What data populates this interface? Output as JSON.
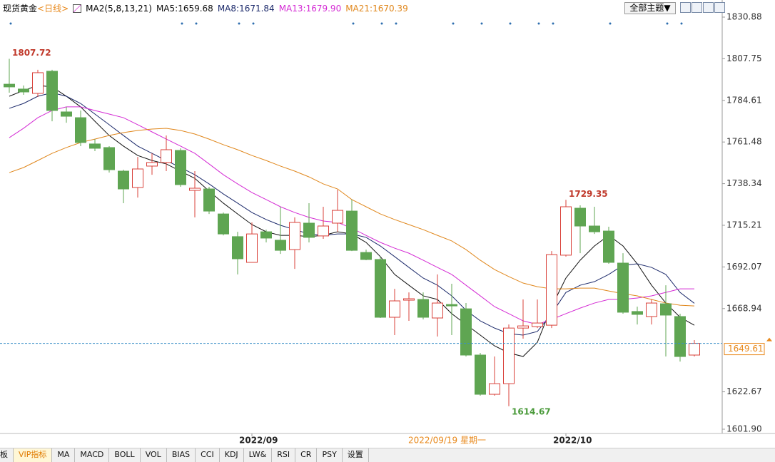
{
  "chart_data": {
    "type": "candlestick",
    "title": "现货黄金",
    "period": "<日线>",
    "indicator": "MA2(5,8,13,21)",
    "crosshair_label": "2022/09/19 星期一",
    "categories": [
      null,
      null,
      null,
      null,
      null,
      null,
      null,
      null,
      null,
      null,
      null,
      null,
      null,
      null,
      null,
      null,
      null,
      "2022/09",
      null,
      null,
      null,
      null,
      null,
      null,
      null,
      null,
      null,
      null,
      null,
      null,
      null,
      null,
      null,
      null,
      null,
      null,
      null,
      null,
      null,
      "2022/10",
      null,
      null,
      null,
      null,
      null,
      null,
      null,
      null,
      null
    ],
    "open": [
      1793.6,
      1790.9,
      1788.5,
      1800.8,
      1778.2,
      1775.0,
      1760.4,
      1758.4,
      1745.3,
      1736.2,
      1748.1,
      1750.1,
      1756.8,
      1734.6,
      1735.4,
      1721.5,
      1708.9,
      1694.6,
      1711.6,
      1706.9,
      1701.7,
      1716.4,
      1709.3,
      1716.4,
      1723.1,
      1700.1,
      1696.2,
      1664.1,
      1673.6,
      1674.0,
      1663.7,
      1671.2,
      1668.8,
      1643.1,
      1621.3,
      1627.2,
      1658.1,
      1658.9,
      1659.7,
      1698.6,
      1724.7,
      1714.8,
      1712.0,
      1694.2,
      1667.3,
      1664.5,
      1671.6,
      1664.5,
      1643.1
    ],
    "high": [
      1807.72,
      1792.9,
      1801.6,
      1801.6,
      1781.0,
      1779.0,
      1763.1,
      1759.2,
      1746.1,
      1753.2,
      1755.2,
      1765.1,
      1758.0,
      1745.3,
      1736.6,
      1722.3,
      1711.6,
      1716.8,
      1712.8,
      1725.5,
      1719.6,
      1727.5,
      1725.5,
      1735.0,
      1729.5,
      1701.7,
      1697.8,
      1679.9,
      1677.9,
      1677.9,
      1687.9,
      1682.7,
      1672.0,
      1644.3,
      1642.3,
      1660.1,
      1674.0,
      1674.0,
      1700.9,
      1729.35,
      1726.3,
      1725.5,
      1714.4,
      1699.7,
      1670.0,
      1674.0,
      1681.9,
      1666.1,
      1651.4
    ],
    "low": [
      1788.9,
      1787.7,
      1786.5,
      1773.0,
      1772.2,
      1759.2,
      1756.4,
      1744.5,
      1727.5,
      1730.6,
      1743.3,
      1745.3,
      1736.6,
      1719.6,
      1721.5,
      1709.6,
      1687.9,
      1694.6,
      1705.7,
      1699.3,
      1691.0,
      1705.7,
      1707.7,
      1711.6,
      1700.9,
      1695.8,
      1663.7,
      1654.2,
      1662.1,
      1662.9,
      1653.4,
      1654.2,
      1642.3,
      1620.5,
      1620.5,
      1614.67,
      1652.2,
      1658.1,
      1658.1,
      1697.8,
      1699.7,
      1710.4,
      1693.8,
      1666.1,
      1660.1,
      1660.1,
      1642.3,
      1639.5,
      1642.3
    ],
    "close": [
      1792.1,
      1789.3,
      1800.0,
      1779.0,
      1775.8,
      1761.2,
      1758.0,
      1746.1,
      1735.4,
      1746.5,
      1750.1,
      1757.2,
      1737.8,
      1735.8,
      1723.1,
      1710.4,
      1696.6,
      1710.4,
      1708.1,
      1701.3,
      1716.8,
      1708.5,
      1714.8,
      1723.5,
      1701.3,
      1696.2,
      1664.1,
      1673.2,
      1674.4,
      1664.1,
      1672.0,
      1670.4,
      1643.1,
      1621.3,
      1627.2,
      1658.1,
      1659.3,
      1660.9,
      1698.9,
      1725.5,
      1714.8,
      1711.6,
      1694.6,
      1666.9,
      1665.7,
      1672.0,
      1665.3,
      1642.3,
      1649.61
    ],
    "up_color": "#d9413a",
    "down_color": "#5fa552",
    "price_line_color": "#3a8fc7",
    "price_label_color": "#e8891c",
    "series": [
      {
        "name": "MA5:1659.68",
        "color": "#111111",
        "values": [
          1786.9,
          1790.1,
          1792.9,
          1792.1,
          1786.9,
          1781.0,
          1773.0,
          1765.1,
          1759.2,
          1754.0,
          1751.2,
          1749.3,
          1745.3,
          1741.3,
          1734.2,
          1727.5,
          1721.5,
          1715.6,
          1711.6,
          1709.6,
          1709.6,
          1708.9,
          1709.6,
          1711.6,
          1710.4,
          1705.7,
          1697.8,
          1687.9,
          1681.9,
          1676.0,
          1674.0,
          1666.1,
          1660.1,
          1654.2,
          1648.2,
          1644.3,
          1642.3,
          1650.2,
          1670.0,
          1685.9,
          1695.8,
          1703.7,
          1709.6,
          1703.7,
          1693.8,
          1681.9,
          1672.0,
          1664.1,
          1659.68
        ]
      },
      {
        "name": "MA8:1671.84",
        "color": "#1c2a6b",
        "values": [
          1780.2,
          1782.9,
          1786.9,
          1788.9,
          1786.9,
          1782.9,
          1777.0,
          1771.1,
          1765.1,
          1759.2,
          1755.2,
          1751.2,
          1747.3,
          1743.3,
          1738.2,
          1732.6,
          1727.5,
          1722.3,
          1718.4,
          1715.2,
          1712.8,
          1710.4,
          1709.6,
          1710.4,
          1710.4,
          1708.5,
          1703.7,
          1697.8,
          1691.8,
          1685.9,
          1681.9,
          1676.0,
          1668.0,
          1662.1,
          1658.1,
          1655.0,
          1654.2,
          1656.2,
          1666.1,
          1677.9,
          1681.9,
          1683.9,
          1687.9,
          1693.0,
          1693.8,
          1691.8,
          1687.9,
          1677.9,
          1671.84
        ]
      },
      {
        "name": "MA13:1679.90",
        "color": "#d42bd4",
        "values": [
          1763.9,
          1769.1,
          1775.0,
          1779.0,
          1781.0,
          1781.0,
          1779.0,
          1777.0,
          1775.0,
          1771.1,
          1767.1,
          1763.1,
          1759.2,
          1755.2,
          1749.3,
          1743.3,
          1738.2,
          1733.4,
          1729.5,
          1725.5,
          1722.3,
          1719.6,
          1717.6,
          1716.8,
          1713.6,
          1709.6,
          1705.7,
          1702.5,
          1699.7,
          1695.8,
          1691.8,
          1687.9,
          1681.9,
          1676.0,
          1670.0,
          1666.1,
          1662.1,
          1660.1,
          1662.9,
          1666.1,
          1669.2,
          1672.0,
          1674.0,
          1674.0,
          1674.8,
          1676.0,
          1677.9,
          1679.9,
          1679.9
        ]
      },
      {
        "name": "MA21:1670.39",
        "color": "#e0871c",
        "values": [
          1744.5,
          1747.3,
          1751.2,
          1755.2,
          1758.4,
          1761.2,
          1763.1,
          1765.1,
          1766.7,
          1767.9,
          1768.7,
          1769.1,
          1767.9,
          1765.9,
          1763.1,
          1760.0,
          1757.2,
          1754.0,
          1751.2,
          1748.1,
          1745.3,
          1742.1,
          1738.2,
          1735.4,
          1729.5,
          1725.5,
          1721.5,
          1718.4,
          1715.6,
          1712.8,
          1709.6,
          1706.5,
          1701.7,
          1695.8,
          1690.6,
          1686.7,
          1683.1,
          1681.1,
          1679.9,
          1679.9,
          1680.3,
          1680.3,
          1678.7,
          1677.2,
          1676.0,
          1674.0,
          1672.0,
          1670.8,
          1670.39
        ]
      }
    ],
    "ylim": [
      1601.9,
      1838.41
    ],
    "yticks": [
      1830.88,
      1807.75,
      1784.61,
      1761.48,
      1738.34,
      1715.21,
      1692.07,
      1668.94,
      1622.67,
      {
        "value": 1601.9,
        "label": "1601.90"
      }
    ]
  },
  "header": {
    "theme_button": "全部主题▼"
  },
  "toolbar": {
    "tabs": [
      "板",
      "VIP指标",
      "MA",
      "MACD",
      "BOLL",
      "VOL",
      "BIAS",
      "CCI",
      "KDJ",
      "LW&",
      "RSI",
      "CR",
      "PSY",
      "设置"
    ]
  }
}
